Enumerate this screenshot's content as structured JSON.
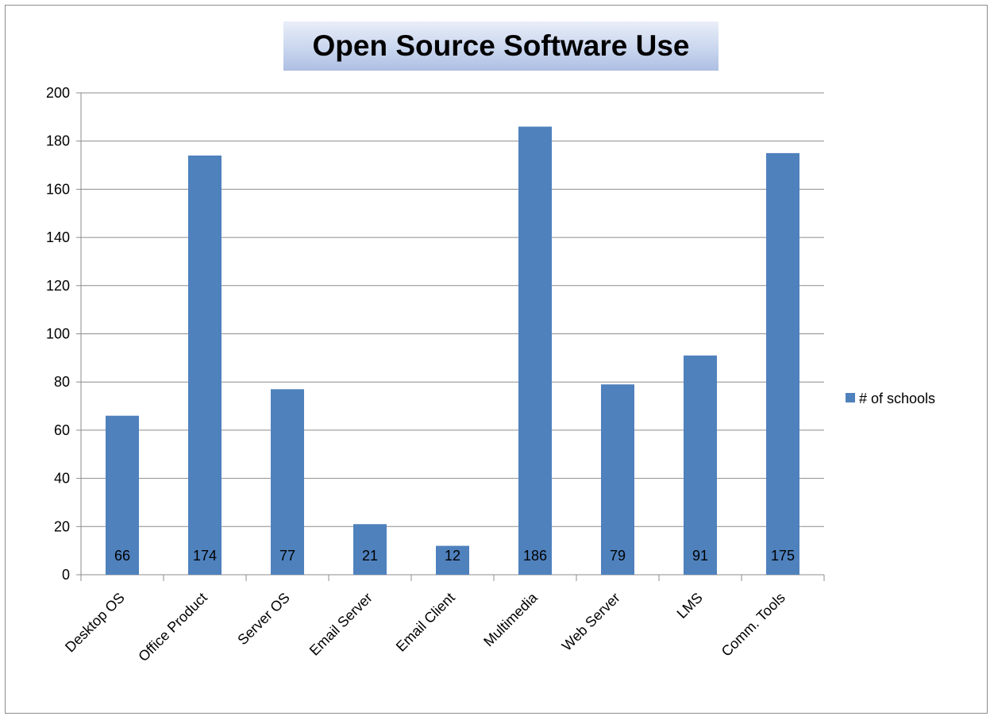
{
  "chart_data": {
    "type": "bar",
    "title": "Open Source Software Use",
    "xlabel": "",
    "ylabel": "",
    "categories": [
      "Desktop OS",
      "Office Product",
      "Server OS",
      "Email Server",
      "Email Client",
      "Multimedia",
      "Web Server",
      "LMS",
      "Comm. Tools"
    ],
    "series": [
      {
        "name": "# of schools",
        "values": [
          66,
          174,
          77,
          21,
          12,
          186,
          79,
          91,
          175
        ],
        "color": "#4f81bd"
      }
    ],
    "ylim": [
      0,
      200
    ],
    "yticks": [
      0,
      20,
      40,
      60,
      80,
      100,
      120,
      140,
      160,
      180,
      200
    ],
    "grid": true,
    "legend_position": "right",
    "data_labels": true
  }
}
